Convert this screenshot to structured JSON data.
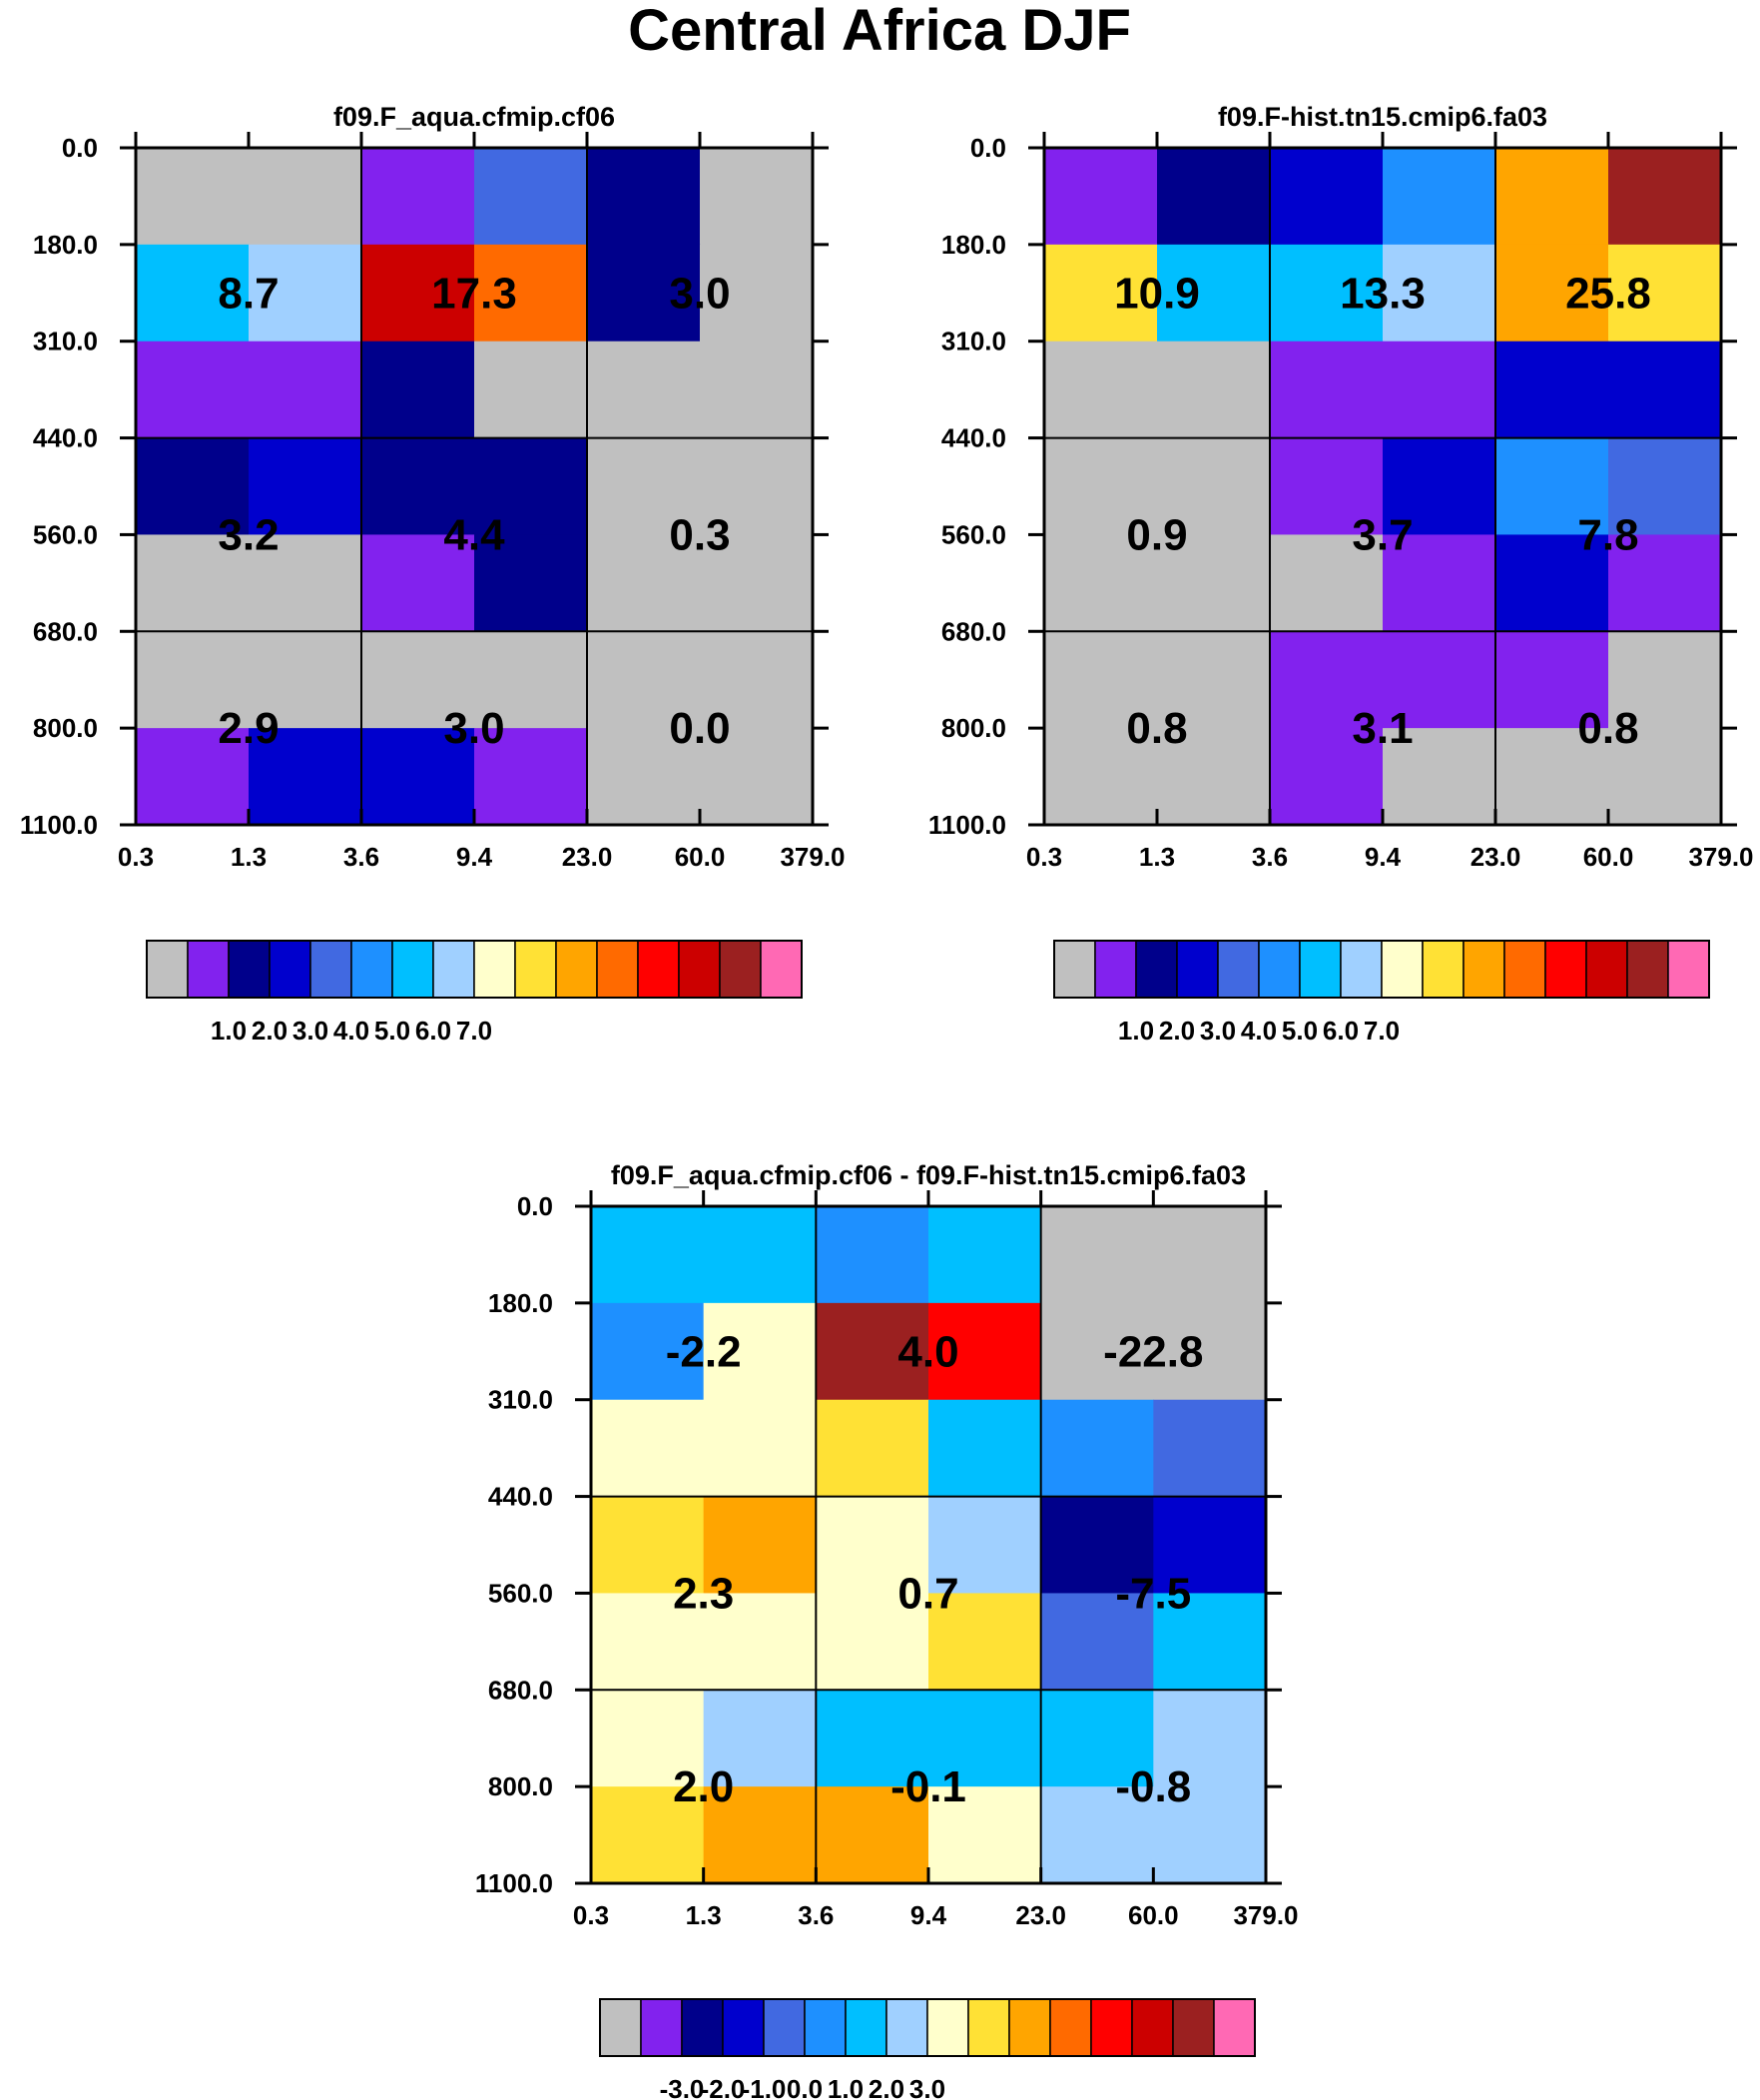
{
  "title": "Central Africa DJF",
  "colors": {
    "palette": [
      "#c0c0c0",
      "#8222ee",
      "#00008b",
      "#0000cd",
      "#4169e1",
      "#1e90ff",
      "#00bfff",
      "#a0d0ff",
      "#ffffcc",
      "#ffe135",
      "#ffa500",
      "#ff6a00",
      "#ff0000",
      "#cc0000",
      "#9b2020",
      "#ff69b4"
    ],
    "grid": "#000000"
  },
  "chart_data": [
    {
      "type": "heatmap",
      "title": "f09.F_aqua.cfmip.cf06",
      "x_ticks": [
        "0.3",
        "1.3",
        "3.6",
        "9.4",
        "23.0",
        "60.0",
        "379.0"
      ],
      "y_ticks": [
        "0.0",
        "180.0",
        "310.0",
        "440.0",
        "560.0",
        "680.0",
        "800.0",
        "1100.0"
      ],
      "cell_colors": [
        [
          0,
          0,
          1,
          4,
          2,
          0
        ],
        [
          6,
          7,
          13,
          11,
          2,
          0
        ],
        [
          1,
          1,
          2,
          0,
          0,
          0
        ],
        [
          2,
          3,
          2,
          2,
          0,
          0
        ],
        [
          0,
          0,
          1,
          2,
          0,
          0
        ],
        [
          0,
          0,
          0,
          0,
          0,
          0
        ],
        [
          1,
          3,
          3,
          1,
          0,
          0
        ]
      ],
      "box_values": [
        [
          "8.7",
          "17.3",
          "3.0"
        ],
        [
          "3.2",
          "4.4",
          "0.3"
        ],
        [
          "2.9",
          "3.0",
          "0.0"
        ]
      ],
      "colorbar_labels": [
        "1.0",
        "2.0",
        "3.0",
        "4.0",
        "5.0",
        "6.0",
        "7.0"
      ]
    },
    {
      "type": "heatmap",
      "title": "f09.F-hist.tn15.cmip6.fa03",
      "x_ticks": [
        "0.3",
        "1.3",
        "3.6",
        "9.4",
        "23.0",
        "60.0",
        "379.0"
      ],
      "y_ticks": [
        "0.0",
        "180.0",
        "310.0",
        "440.0",
        "560.0",
        "680.0",
        "800.0",
        "1100.0"
      ],
      "cell_colors": [
        [
          1,
          2,
          3,
          5,
          10,
          14
        ],
        [
          9,
          6,
          6,
          7,
          10,
          9
        ],
        [
          0,
          0,
          1,
          1,
          3,
          3
        ],
        [
          0,
          0,
          1,
          3,
          5,
          4
        ],
        [
          0,
          0,
          0,
          1,
          3,
          1
        ],
        [
          0,
          0,
          1,
          1,
          1,
          0
        ],
        [
          0,
          0,
          1,
          0,
          0,
          0
        ]
      ],
      "box_values": [
        [
          "10.9",
          "13.3",
          "25.8"
        ],
        [
          "0.9",
          "3.7",
          "7.8"
        ],
        [
          "0.8",
          "3.1",
          "0.8"
        ]
      ],
      "colorbar_labels": [
        "1.0",
        "2.0",
        "3.0",
        "4.0",
        "5.0",
        "6.0",
        "7.0"
      ]
    },
    {
      "type": "heatmap",
      "title": "f09.F_aqua.cfmip.cf06 - f09.F-hist.tn15.cmip6.fa03",
      "x_ticks": [
        "0.3",
        "1.3",
        "3.6",
        "9.4",
        "23.0",
        "60.0",
        "379.0"
      ],
      "y_ticks": [
        "0.0",
        "180.0",
        "310.0",
        "440.0",
        "560.0",
        "680.0",
        "800.0",
        "1100.0"
      ],
      "cell_colors": [
        [
          6,
          6,
          5,
          6,
          0,
          0
        ],
        [
          5,
          8,
          14,
          12,
          0,
          0
        ],
        [
          8,
          8,
          9,
          6,
          5,
          4
        ],
        [
          9,
          10,
          8,
          7,
          2,
          3
        ],
        [
          8,
          8,
          8,
          9,
          4,
          6
        ],
        [
          8,
          7,
          6,
          6,
          6,
          7
        ],
        [
          9,
          10,
          10,
          8,
          7,
          7
        ]
      ],
      "box_values": [
        [
          "-2.2",
          "4.0",
          "-22.8"
        ],
        [
          "2.3",
          "0.7",
          "-7.5"
        ],
        [
          "2.0",
          "-0.1",
          "-0.8"
        ]
      ],
      "colorbar_labels": [
        "-3.0",
        "-2.0",
        "-1.0",
        "0.0",
        "1.0",
        "2.0",
        "3.0"
      ]
    }
  ]
}
